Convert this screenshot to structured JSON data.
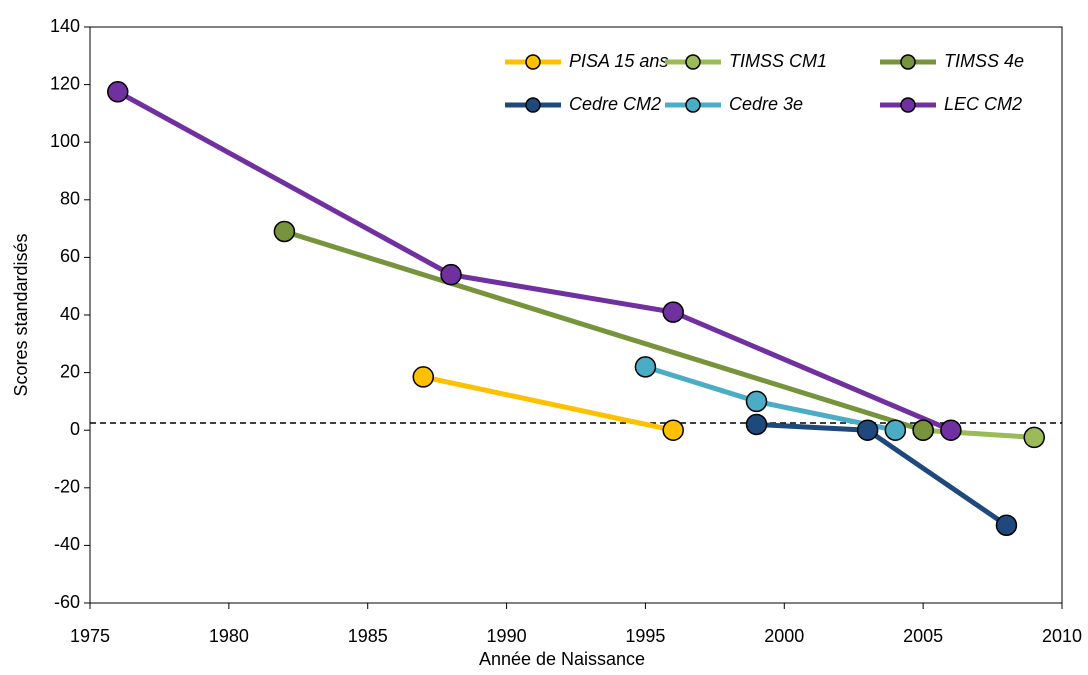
{
  "chart_data": {
    "type": "line",
    "xlabel": "Année de Naissance",
    "ylabel": "Scores standardisés",
    "xlim": [
      1975,
      2010
    ],
    "xticks": [
      1975,
      1980,
      1985,
      1990,
      1995,
      2000,
      2005,
      2010
    ],
    "ylim": [
      -60,
      140
    ],
    "yticks": [
      -60,
      -40,
      -20,
      0,
      20,
      40,
      60,
      80,
      100,
      120,
      140
    ],
    "hline": 2.5,
    "series": [
      {
        "name": "PISA 15 ans",
        "color": "#FFC000",
        "x": [
          1987,
          1996
        ],
        "values": [
          18.5,
          0
        ]
      },
      {
        "name": "TIMSS CM1",
        "color": "#9BBB59",
        "x": [
          2005,
          2009
        ],
        "values": [
          0,
          -2.5
        ]
      },
      {
        "name": "TIMSS 4e",
        "color": "#77933C",
        "x": [
          1982,
          2005
        ],
        "values": [
          69,
          0
        ]
      },
      {
        "name": "Cedre CM2",
        "color": "#1F497D",
        "x": [
          1999,
          2003,
          2008
        ],
        "values": [
          2,
          0,
          -33
        ]
      },
      {
        "name": "Cedre 3e",
        "color": "#4BACC6",
        "x": [
          1995,
          1999,
          2004
        ],
        "values": [
          22,
          10,
          0
        ]
      },
      {
        "name": "LEC CM2",
        "color": "#7030A0",
        "x": [
          1976,
          1988,
          1996,
          2006
        ],
        "values": [
          117.5,
          54,
          41,
          0
        ]
      }
    ]
  }
}
